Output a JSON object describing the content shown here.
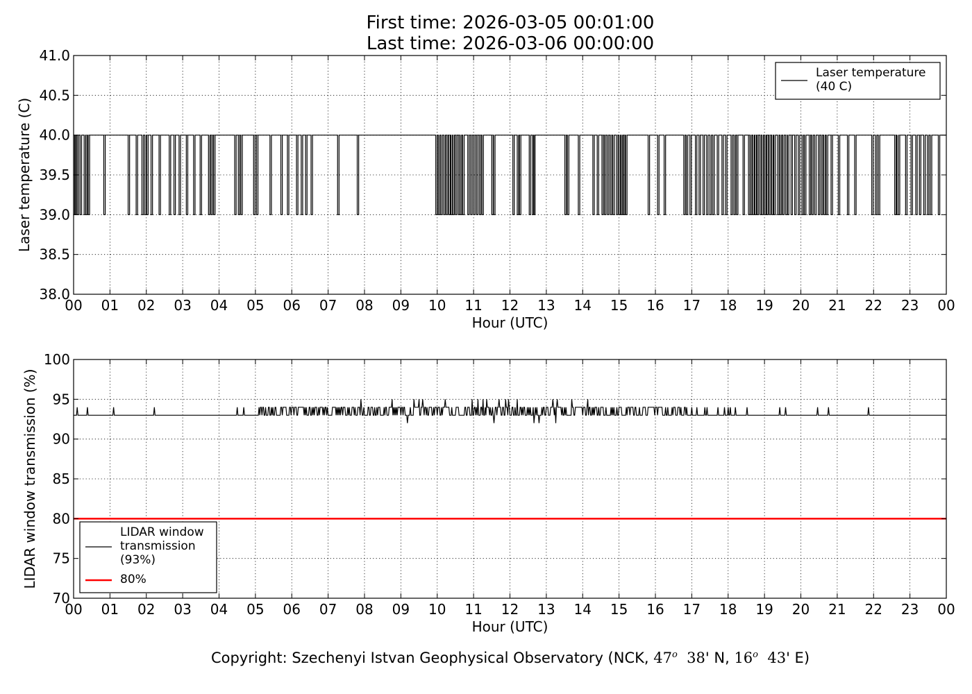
{
  "page": {
    "title_line1": "First time: 2026-03-05 00:01:00",
    "title_line2": "Last time: 2026-03-06 00:00:00",
    "copyright_prefix": "Copyright: Szechenyi Istvan Geophysical Observatory (NCK, ",
    "lat_deg": "47",
    "lat_min": "38",
    "lat_hem": "N,",
    "lon_deg": "16",
    "lon_min": "43",
    "lon_hem": "E)",
    "degree_symbol": "o"
  },
  "chart_data": [
    {
      "type": "line",
      "ylabel": "Laser temperature (C)",
      "xlabel": "Hour (UTC)",
      "xlim": [
        0,
        24
      ],
      "ylim": [
        38.0,
        41.0
      ],
      "xticks": [
        "00",
        "01",
        "02",
        "03",
        "04",
        "05",
        "06",
        "07",
        "08",
        "09",
        "10",
        "11",
        "12",
        "13",
        "14",
        "15",
        "16",
        "17",
        "18",
        "19",
        "20",
        "21",
        "22",
        "23",
        "00"
      ],
      "yticks": [
        "38.0",
        "38.5",
        "39.0",
        "39.5",
        "40.0",
        "40.5",
        "41.0"
      ],
      "ytick_values": [
        38.0,
        38.5,
        39.0,
        39.5,
        40.0,
        40.5,
        41.0
      ],
      "grid": true,
      "legend_position": "top-right",
      "series": [
        {
          "name": "Laser temperature\n(40 C)",
          "color": "#000000",
          "baseline": 40.0,
          "dip_value": 39.0,
          "dips_hour": [
            0.02,
            0.05,
            0.12,
            0.2,
            0.31,
            0.36,
            0.42,
            0.85,
            1.52,
            1.74,
            1.9,
            1.98,
            2.03,
            2.15,
            2.37,
            2.65,
            2.78,
            2.92,
            3.12,
            3.32,
            3.5,
            3.73,
            3.8,
            3.87,
            4.45,
            4.55,
            4.62,
            4.97,
            5.05,
            5.42,
            5.72,
            5.9,
            6.15,
            6.28,
            6.4,
            6.55,
            7.28,
            7.82,
            9.98,
            10.05,
            10.12,
            10.2,
            10.27,
            10.34,
            10.4,
            10.45,
            10.52,
            10.6,
            10.65,
            10.72,
            10.86,
            10.94,
            11.02,
            11.1,
            11.18,
            11.25,
            11.52,
            11.57,
            12.1,
            12.22,
            12.28,
            12.55,
            12.64,
            12.67,
            13.53,
            13.6,
            13.9,
            14.3,
            14.42,
            14.55,
            14.62,
            14.7,
            14.78,
            14.85,
            14.95,
            15.02,
            15.08,
            15.14,
            15.2,
            15.82,
            16.08,
            16.26,
            16.8,
            16.87,
            16.97,
            17.12,
            17.22,
            17.33,
            17.43,
            17.52,
            17.6,
            17.72,
            17.85,
            17.95,
            18.1,
            18.18,
            18.25,
            18.43,
            18.58,
            18.63,
            18.7,
            18.76,
            18.82,
            18.9,
            18.95,
            19.02,
            19.08,
            19.15,
            19.22,
            19.28,
            19.38,
            19.45,
            19.52,
            19.6,
            19.65,
            19.75,
            19.85,
            19.95,
            20.05,
            20.12,
            20.25,
            20.32,
            20.4,
            20.5,
            20.58,
            20.65,
            20.72,
            20.85,
            21.05,
            21.3,
            21.5,
            21.97,
            22.07,
            22.15,
            22.6,
            22.66,
            22.7,
            22.9,
            23.05,
            23.18,
            23.28,
            23.4,
            23.5,
            23.58,
            23.8
          ],
          "dip_width_hour": 0.04
        }
      ]
    },
    {
      "type": "line",
      "ylabel": "LIDAR window transmission (%)",
      "xlabel": "Hour (UTC)",
      "xlim": [
        0,
        24
      ],
      "ylim": [
        70,
        100
      ],
      "xticks": [
        "00",
        "01",
        "02",
        "03",
        "04",
        "05",
        "06",
        "07",
        "08",
        "09",
        "10",
        "11",
        "12",
        "13",
        "14",
        "15",
        "16",
        "17",
        "18",
        "19",
        "20",
        "21",
        "22",
        "23",
        "00"
      ],
      "yticks": [
        "70",
        "75",
        "80",
        "85",
        "90",
        "95",
        "100"
      ],
      "ytick_values": [
        70,
        75,
        80,
        85,
        90,
        95,
        100
      ],
      "grid": true,
      "legend_position": "lower-left",
      "series": [
        {
          "name": "LIDAR window\ntransmission\n(93%)",
          "color": "#000000",
          "baseline": 93,
          "noisy_range_hour": [
            5.1,
            16.9
          ],
          "noise_values": [
            93,
            94
          ],
          "spikes_up": [
            {
              "x": 0.1,
              "y": 94
            },
            {
              "x": 0.37,
              "y": 94
            },
            {
              "x": 1.1,
              "y": 94
            },
            {
              "x": 2.22,
              "y": 94
            },
            {
              "x": 4.5,
              "y": 94
            },
            {
              "x": 4.67,
              "y": 94
            },
            {
              "x": 7.9,
              "y": 95
            },
            {
              "x": 8.75,
              "y": 95
            },
            {
              "x": 9.35,
              "y": 95
            },
            {
              "x": 9.5,
              "y": 95
            },
            {
              "x": 9.6,
              "y": 95
            },
            {
              "x": 10.22,
              "y": 95
            },
            {
              "x": 10.95,
              "y": 95
            },
            {
              "x": 11.12,
              "y": 95
            },
            {
              "x": 11.25,
              "y": 95
            },
            {
              "x": 11.35,
              "y": 95
            },
            {
              "x": 11.7,
              "y": 95
            },
            {
              "x": 11.88,
              "y": 95
            },
            {
              "x": 11.95,
              "y": 95
            },
            {
              "x": 12.2,
              "y": 95
            },
            {
              "x": 13.18,
              "y": 95
            },
            {
              "x": 13.3,
              "y": 95
            },
            {
              "x": 13.7,
              "y": 95
            },
            {
              "x": 14.13,
              "y": 95
            },
            {
              "x": 17.0,
              "y": 94
            },
            {
              "x": 17.15,
              "y": 94
            },
            {
              "x": 17.35,
              "y": 94
            },
            {
              "x": 17.42,
              "y": 94
            },
            {
              "x": 17.72,
              "y": 94
            },
            {
              "x": 17.9,
              "y": 94
            },
            {
              "x": 18.0,
              "y": 94
            },
            {
              "x": 18.05,
              "y": 94
            },
            {
              "x": 18.2,
              "y": 94
            },
            {
              "x": 18.52,
              "y": 94
            },
            {
              "x": 19.42,
              "y": 94
            },
            {
              "x": 19.57,
              "y": 94
            },
            {
              "x": 20.45,
              "y": 94
            },
            {
              "x": 20.75,
              "y": 94
            },
            {
              "x": 21.85,
              "y": 94
            }
          ],
          "spikes_down": [
            {
              "x": 9.17,
              "y": 92
            },
            {
              "x": 11.55,
              "y": 92
            },
            {
              "x": 12.65,
              "y": 92
            },
            {
              "x": 12.8,
              "y": 92
            },
            {
              "x": 13.25,
              "y": 92
            }
          ]
        },
        {
          "name": "80%",
          "color": "#ff0000",
          "values_constant": 80
        }
      ]
    }
  ]
}
